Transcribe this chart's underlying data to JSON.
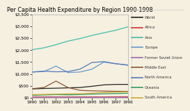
{
  "title": "Per Capita Health Expenditure by Region 1990-1998",
  "years": [
    1990,
    1991,
    1992,
    1993,
    1994,
    1995,
    1996,
    1997,
    1998
  ],
  "series": {
    "World": [
      370,
      390,
      400,
      415,
      430,
      480,
      540,
      560,
      560
    ],
    "Africa": [
      30,
      32,
      33,
      32,
      32,
      33,
      35,
      38,
      40
    ],
    "Asia": [
      2020,
      2100,
      2230,
      2380,
      2490,
      2620,
      2730,
      2840,
      2980
    ],
    "Europe": [
      1080,
      1100,
      1330,
      1060,
      1080,
      1200,
      1500,
      1430,
      1380
    ],
    "Former Soviet Union": [
      18,
      20,
      22,
      20,
      18,
      18,
      20,
      18,
      15
    ],
    "Middle East": [
      380,
      430,
      700,
      430,
      310,
      290,
      280,
      270,
      265
    ],
    "North America": [
      1080,
      1120,
      1090,
      1100,
      1200,
      1480,
      1520,
      1430,
      1370
    ],
    "Oceania": [
      100,
      115,
      130,
      120,
      130,
      150,
      165,
      175,
      190
    ],
    "South America": [
      125,
      140,
      150,
      160,
      170,
      190,
      220,
      235,
      250
    ]
  },
  "colors": {
    "World": "#222222",
    "Africa": "#cc3333",
    "Asia": "#44bbaa",
    "Europe": "#6699cc",
    "Former Soviet Union": "#9966aa",
    "Middle East": "#885533",
    "North America": "#5577bb",
    "Oceania": "#339966",
    "South America": "#ccaa33"
  },
  "ylim": [
    0,
    3500
  ],
  "yticks": [
    0,
    500,
    1000,
    1500,
    2000,
    2500,
    3000,
    3500
  ],
  "ytick_labels": [
    "$0",
    "$500",
    "$1,000",
    "$1,500",
    "$2,000",
    "$2,500",
    "$3,000",
    "$3,500"
  ],
  "background_color": "#f5f0e0",
  "plot_area_color": "#f5f0e0",
  "title_fontsize": 5.8,
  "legend_fontsize": 3.8,
  "tick_fontsize": 4.2,
  "linewidth": 0.9
}
